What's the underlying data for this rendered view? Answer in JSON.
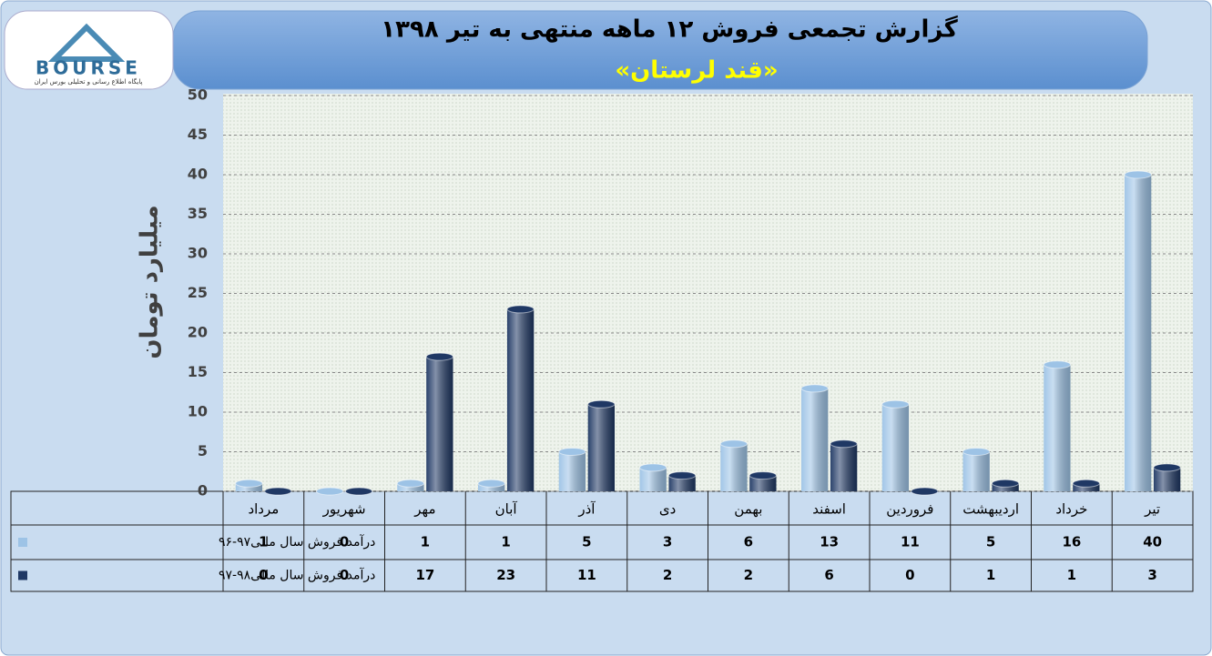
{
  "logo": {
    "name": "BOURSE",
    "tagline": "پایگاه اطلاع رسانی و تحلیلی بورس ایران"
  },
  "chart_data": {
    "type": "bar",
    "title": "گزارش تجمعی فروش ۱۲ ماهه منتهی به تیر ۱۳۹۸",
    "subtitle": "«قند لرستان»",
    "y_label": "میلیارد تومان",
    "categories": [
      "مرداد",
      "شهریور",
      "مهر",
      "آبان",
      "آذر",
      "دی",
      "بهمن",
      "اسفند",
      "فروردین",
      "اردیبهشت",
      "خرداد",
      "تیر"
    ],
    "series": [
      {
        "name": "درآمد فروش سال مالی۹۷-۹۶",
        "color": "#9dc3e6",
        "values": [
          1,
          0,
          1,
          1,
          5,
          3,
          6,
          13,
          11,
          5,
          16,
          40
        ]
      },
      {
        "name": "درآمد فروش سال مالی۹۸-۹۷",
        "color": "#1f3864",
        "values": [
          0,
          0,
          17,
          23,
          11,
          2,
          2,
          6,
          0,
          1,
          1,
          3
        ]
      }
    ],
    "ylim": [
      0,
      50
    ],
    "yticks": [
      0,
      5,
      10,
      15,
      20,
      25,
      30,
      35,
      40,
      45,
      50
    ],
    "grid": true
  }
}
